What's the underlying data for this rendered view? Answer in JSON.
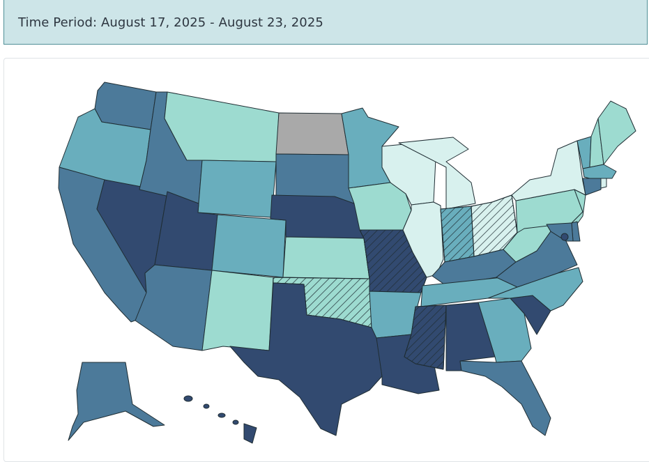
{
  "header": {
    "time_period": "Time Period: August 17, 2025 - August 23, 2025"
  },
  "legend_colors": {
    "very_low": "#d8f1ee",
    "low": "#9ddbd0",
    "moderate": "#69aebd",
    "high": "#4c7a9a",
    "very_high": "#324a70",
    "no_data": "#a9a9a9"
  },
  "map": {
    "states": [
      {
        "name": "WA",
        "level": "high"
      },
      {
        "name": "OR",
        "level": "moderate"
      },
      {
        "name": "CA",
        "level": "high"
      },
      {
        "name": "NV",
        "level": "very_high"
      },
      {
        "name": "ID",
        "level": "high"
      },
      {
        "name": "MT",
        "level": "low"
      },
      {
        "name": "WY",
        "level": "moderate"
      },
      {
        "name": "UT",
        "level": "very_high"
      },
      {
        "name": "AZ",
        "level": "high"
      },
      {
        "name": "CO",
        "level": "moderate"
      },
      {
        "name": "NM",
        "level": "low"
      },
      {
        "name": "ND",
        "level": "no_data"
      },
      {
        "name": "SD",
        "level": "high"
      },
      {
        "name": "NE",
        "level": "very_high"
      },
      {
        "name": "KS",
        "level": "low"
      },
      {
        "name": "OK",
        "level": "low",
        "hatched": true
      },
      {
        "name": "TX",
        "level": "very_high"
      },
      {
        "name": "MN",
        "level": "moderate"
      },
      {
        "name": "IA",
        "level": "low"
      },
      {
        "name": "MO",
        "level": "very_high",
        "hatched": true
      },
      {
        "name": "AR",
        "level": "moderate"
      },
      {
        "name": "LA",
        "level": "very_high"
      },
      {
        "name": "WI",
        "level": "very_low"
      },
      {
        "name": "IL",
        "level": "very_low"
      },
      {
        "name": "MI",
        "level": "very_low"
      },
      {
        "name": "IN",
        "level": "moderate",
        "hatched": true
      },
      {
        "name": "OH",
        "level": "very_low",
        "hatched": true
      },
      {
        "name": "KY",
        "level": "high"
      },
      {
        "name": "TN",
        "level": "moderate"
      },
      {
        "name": "MS",
        "level": "very_high",
        "hatched": true
      },
      {
        "name": "AL",
        "level": "very_high"
      },
      {
        "name": "GA",
        "level": "moderate"
      },
      {
        "name": "FL",
        "level": "high"
      },
      {
        "name": "SC",
        "level": "very_high"
      },
      {
        "name": "NC",
        "level": "moderate"
      },
      {
        "name": "VA",
        "level": "high"
      },
      {
        "name": "WV",
        "level": "low"
      },
      {
        "name": "PA",
        "level": "low"
      },
      {
        "name": "NY",
        "level": "very_low"
      },
      {
        "name": "VT",
        "level": "moderate"
      },
      {
        "name": "NH",
        "level": "low"
      },
      {
        "name": "ME",
        "level": "low"
      },
      {
        "name": "MA",
        "level": "moderate"
      },
      {
        "name": "CT",
        "level": "high"
      },
      {
        "name": "RI",
        "level": "very_low"
      },
      {
        "name": "NJ",
        "level": "low"
      },
      {
        "name": "DE",
        "level": "high"
      },
      {
        "name": "MD",
        "level": "high"
      },
      {
        "name": "DC",
        "level": "very_high"
      },
      {
        "name": "AK",
        "level": "high"
      },
      {
        "name": "HI",
        "level": "very_high"
      }
    ]
  }
}
